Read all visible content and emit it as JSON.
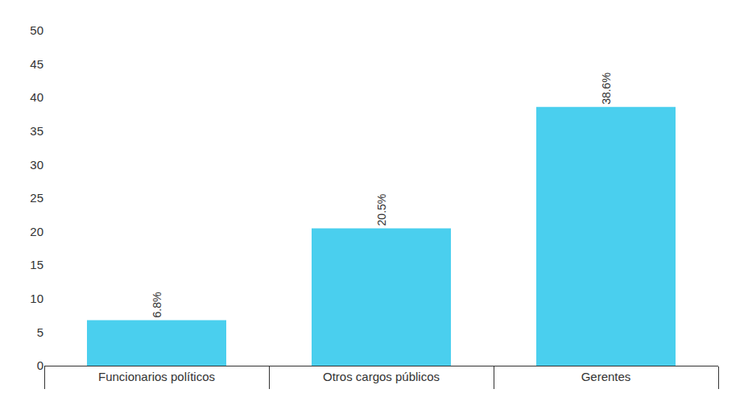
{
  "chart_data": {
    "type": "bar",
    "categories": [
      "Funcionarios políticos",
      "Otros cargos públicos",
      "Gerentes"
    ],
    "values": [
      6.8,
      20.5,
      38.6
    ],
    "value_labels": [
      "6.8%",
      "20.5%",
      "38.6%"
    ],
    "color": "#4acfee",
    "ylim": [
      0,
      50
    ],
    "yticks": [
      0,
      5,
      10,
      15,
      20,
      25,
      30,
      35,
      40,
      45,
      50
    ],
    "grid": false,
    "data_labels": true
  }
}
